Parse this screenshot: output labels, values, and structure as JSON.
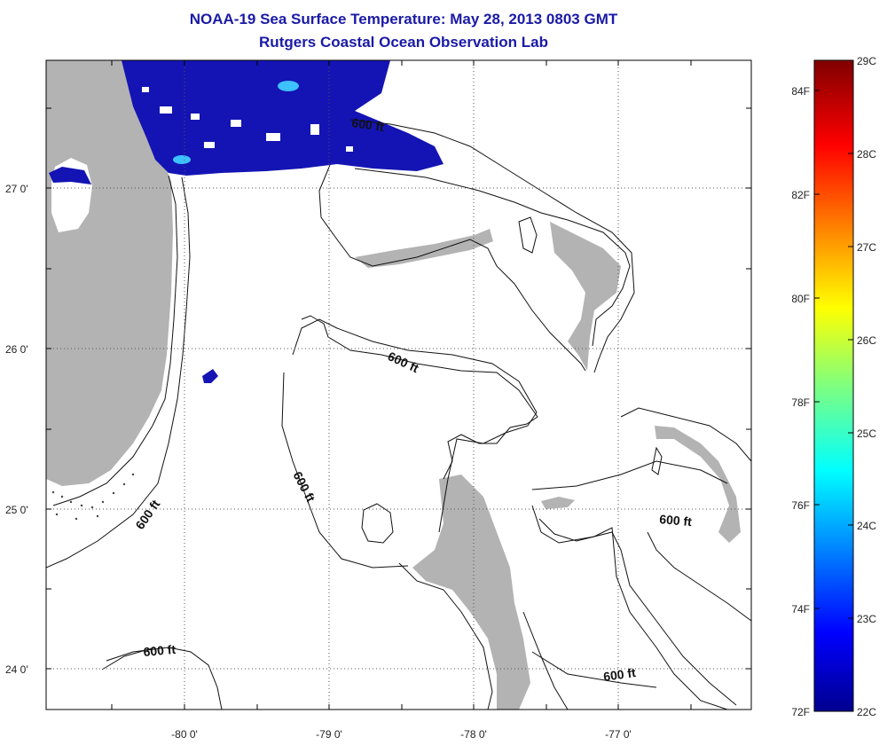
{
  "title": "NOAA-19 Sea Surface Temperature:  May 28, 2013 0803 GMT",
  "subtitle": "Rutgers Coastal Ocean Observation Lab",
  "x_ticks": [
    "-80 0'",
    "-79 0'",
    "-78 0'",
    "-77 0'"
  ],
  "y_ticks": [
    "27 0'",
    "26 0'",
    "25 0'",
    "24 0'"
  ],
  "contour_label": "600 ft",
  "colorbar": {
    "c_labels": [
      "29C",
      "28C",
      "27C",
      "26C",
      "25C",
      "24C",
      "23C",
      "22C"
    ],
    "f_labels": [
      "84F",
      "82F",
      "80F",
      "78F",
      "76F",
      "74F",
      "72F"
    ]
  },
  "colors": {
    "land": "#b3b3b3",
    "cold_water": "#1414b4",
    "title": "#1a1aa6"
  }
}
